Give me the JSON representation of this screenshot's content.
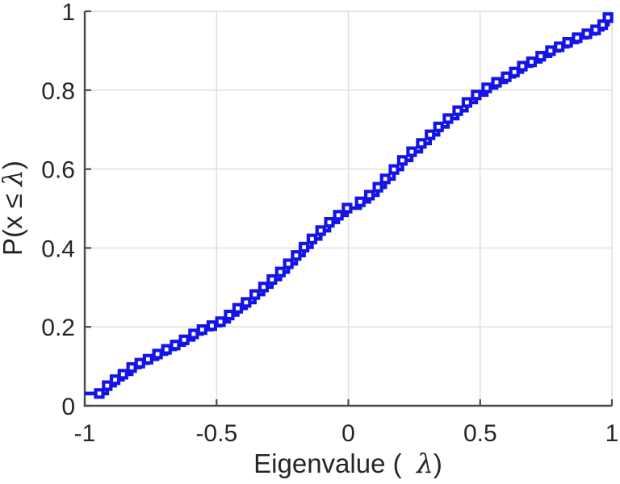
{
  "figure": {
    "background": "#FFFFFF"
  },
  "chart_data": {
    "type": "line",
    "style": "stairs-ecdf",
    "title": "",
    "xlabel": "Eigenvalue ( λ)",
    "ylabel": "P(x ≤ λ)",
    "xlabel_parts": {
      "prefix": "Eigenvalue (  ",
      "symbol": "λ",
      "suffix": ")"
    },
    "ylabel_parts": {
      "prefix": "P(x ≤ ",
      "symbol": "λ",
      "suffix": ")"
    },
    "xlim": [
      -1,
      1
    ],
    "ylim": [
      0,
      1
    ],
    "xticks": {
      "values": [
        -1,
        -0.5,
        0,
        0.5,
        1
      ],
      "labels": [
        "-1",
        "-0.5",
        "0",
        "0.5",
        "1"
      ]
    },
    "yticks": {
      "values": [
        0,
        0.2,
        0.4,
        0.6,
        0.8,
        1
      ],
      "labels": [
        "0",
        "0.2",
        "0.4",
        "0.6",
        "0.8",
        "1"
      ]
    },
    "grid": true,
    "legend": null,
    "axis_color": "#4A4A4A",
    "grid_color": "#DDDDDD",
    "text_color": "#262626",
    "series": [
      {
        "name": "eigenvalue-cdf",
        "color": "#1414E6",
        "marker": "square",
        "marker_fill": "#FFFFFF",
        "x": [
          -0.945,
          -0.915,
          -0.885,
          -0.855,
          -0.822,
          -0.791,
          -0.76,
          -0.724,
          -0.69,
          -0.657,
          -0.623,
          -0.587,
          -0.555,
          -0.518,
          -0.485,
          -0.452,
          -0.42,
          -0.388,
          -0.355,
          -0.322,
          -0.29,
          -0.258,
          -0.228,
          -0.198,
          -0.168,
          -0.138,
          -0.105,
          -0.072,
          -0.038,
          -0.005,
          0.045,
          0.08,
          0.112,
          0.14,
          0.173,
          0.205,
          0.24,
          0.277,
          0.31,
          0.342,
          0.378,
          0.415,
          0.45,
          0.485,
          0.525,
          0.562,
          0.599,
          0.63,
          0.66,
          0.695,
          0.73,
          0.767,
          0.8,
          0.832,
          0.868,
          0.905,
          0.938,
          0.965,
          0.985
        ],
        "y": [
          0.031,
          0.051,
          0.066,
          0.08,
          0.097,
          0.108,
          0.118,
          0.131,
          0.143,
          0.154,
          0.167,
          0.182,
          0.193,
          0.203,
          0.213,
          0.23,
          0.247,
          0.262,
          0.282,
          0.301,
          0.32,
          0.339,
          0.36,
          0.381,
          0.402,
          0.423,
          0.444,
          0.465,
          0.483,
          0.501,
          0.517,
          0.534,
          0.554,
          0.575,
          0.599,
          0.622,
          0.644,
          0.665,
          0.687,
          0.707,
          0.728,
          0.748,
          0.769,
          0.788,
          0.806,
          0.82,
          0.834,
          0.846,
          0.861,
          0.872,
          0.886,
          0.9,
          0.91,
          0.921,
          0.933,
          0.943,
          0.953,
          0.966,
          0.984
        ]
      }
    ]
  }
}
